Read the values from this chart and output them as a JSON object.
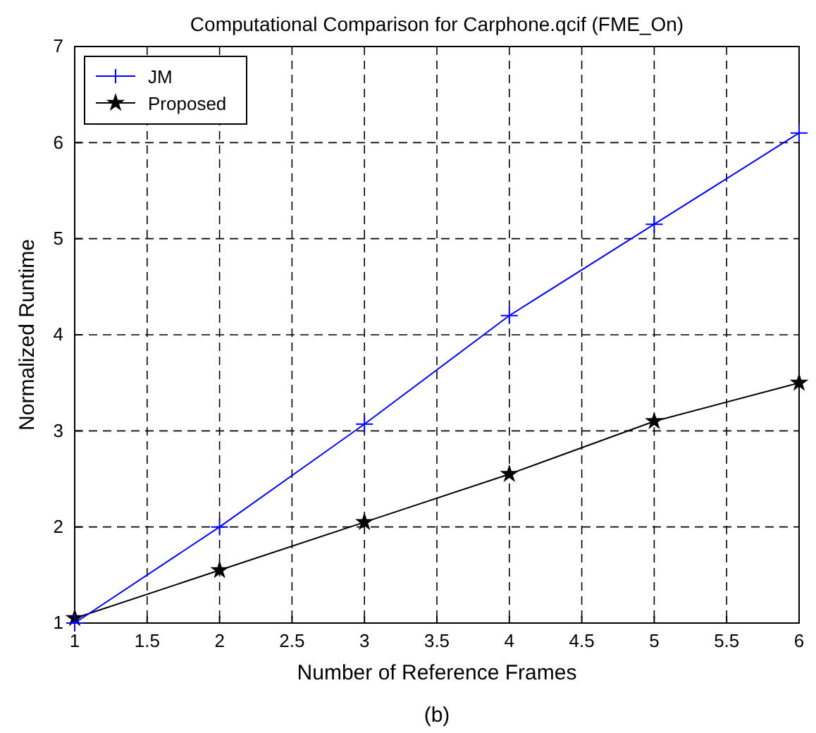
{
  "chart_data": {
    "type": "line",
    "title": "Computational Comparison for Carphone.qcif (FME_On)",
    "xlabel": "Number of Reference Frames",
    "ylabel": "Normalized Runtime",
    "x": [
      1,
      2,
      3,
      4,
      5,
      6
    ],
    "series": [
      {
        "name": "JM",
        "color": "#0000ff",
        "marker": "cross",
        "values": [
          1.0,
          2.0,
          3.07,
          4.2,
          5.15,
          6.1
        ]
      },
      {
        "name": "Proposed",
        "color": "#000000",
        "marker": "star",
        "values": [
          1.05,
          1.55,
          2.05,
          2.55,
          3.1,
          3.5
        ]
      }
    ],
    "xlim": [
      1,
      6
    ],
    "xticks": [
      1,
      1.5,
      2,
      2.5,
      3,
      3.5,
      4,
      4.5,
      5,
      5.5,
      6
    ],
    "ylim": [
      1,
      7
    ],
    "yticks": [
      1,
      2,
      3,
      4,
      5,
      6,
      7
    ],
    "grid": true,
    "legend": "top left",
    "line_style": "solid",
    "annotations": [
      "(b)"
    ]
  }
}
